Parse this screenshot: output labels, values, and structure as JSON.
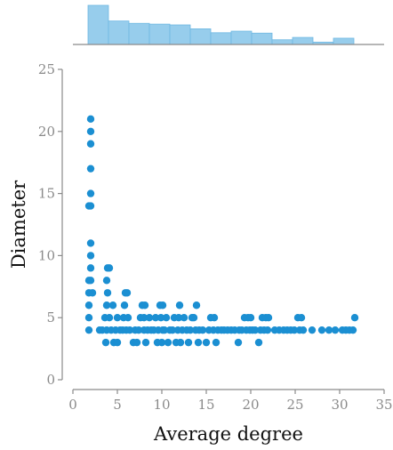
{
  "chart_data": {
    "type": "scatter",
    "title": "",
    "xlabel": "Average degree",
    "ylabel": "Diameter",
    "xlim": [
      0,
      35
    ],
    "ylim": [
      0,
      25
    ],
    "xticks": [
      0,
      5,
      10,
      15,
      20,
      25,
      30,
      35
    ],
    "yticks": [
      0,
      5,
      10,
      15,
      20,
      25
    ],
    "grid": false,
    "legend": "none",
    "colors": {
      "points": "#1b8fd2",
      "hist_fill": "#97cdec",
      "hist_edge": "#6fb8e2"
    },
    "marginal_histogram": {
      "axis": "x",
      "bin_edges": [
        1.7,
        4.0,
        6.3,
        8.6,
        10.9,
        13.2,
        15.5,
        17.8,
        20.1,
        22.4,
        24.7,
        27.0,
        29.3,
        31.6
      ],
      "relative_heights": [
        1.0,
        0.6,
        0.54,
        0.52,
        0.5,
        0.4,
        0.3,
        0.34,
        0.29,
        0.12,
        0.18,
        0.06,
        0.16
      ]
    },
    "points": [
      {
        "x": 1.8,
        "y": 4
      },
      {
        "x": 1.8,
        "y": 5
      },
      {
        "x": 1.8,
        "y": 6
      },
      {
        "x": 1.8,
        "y": 7
      },
      {
        "x": 1.8,
        "y": 8
      },
      {
        "x": 1.8,
        "y": 14
      },
      {
        "x": 2.0,
        "y": 8
      },
      {
        "x": 2.0,
        "y": 9
      },
      {
        "x": 2.0,
        "y": 10
      },
      {
        "x": 2.0,
        "y": 11
      },
      {
        "x": 2.0,
        "y": 14
      },
      {
        "x": 2.0,
        "y": 15
      },
      {
        "x": 2.0,
        "y": 17
      },
      {
        "x": 2.0,
        "y": 19
      },
      {
        "x": 2.0,
        "y": 20
      },
      {
        "x": 2.0,
        "y": 21
      },
      {
        "x": 2.2,
        "y": 7
      },
      {
        "x": 3.0,
        "y": 4
      },
      {
        "x": 3.3,
        "y": 4
      },
      {
        "x": 3.6,
        "y": 5
      },
      {
        "x": 3.7,
        "y": 3
      },
      {
        "x": 3.8,
        "y": 4
      },
      {
        "x": 3.8,
        "y": 6
      },
      {
        "x": 3.8,
        "y": 8
      },
      {
        "x": 3.9,
        "y": 7
      },
      {
        "x": 3.9,
        "y": 9
      },
      {
        "x": 4.1,
        "y": 9
      },
      {
        "x": 4.1,
        "y": 5
      },
      {
        "x": 4.3,
        "y": 4
      },
      {
        "x": 4.5,
        "y": 6
      },
      {
        "x": 4.6,
        "y": 3
      },
      {
        "x": 4.8,
        "y": 4
      },
      {
        "x": 5.0,
        "y": 3
      },
      {
        "x": 5.0,
        "y": 5
      },
      {
        "x": 5.3,
        "y": 4
      },
      {
        "x": 5.6,
        "y": 4
      },
      {
        "x": 5.7,
        "y": 5
      },
      {
        "x": 5.8,
        "y": 6
      },
      {
        "x": 5.9,
        "y": 7
      },
      {
        "x": 6.0,
        "y": 4
      },
      {
        "x": 6.1,
        "y": 7
      },
      {
        "x": 6.2,
        "y": 5
      },
      {
        "x": 6.4,
        "y": 4
      },
      {
        "x": 6.8,
        "y": 3
      },
      {
        "x": 7.0,
        "y": 4
      },
      {
        "x": 7.2,
        "y": 3
      },
      {
        "x": 7.4,
        "y": 4
      },
      {
        "x": 7.6,
        "y": 5
      },
      {
        "x": 7.8,
        "y": 6
      },
      {
        "x": 8.0,
        "y": 4
      },
      {
        "x": 8.0,
        "y": 5
      },
      {
        "x": 8.1,
        "y": 6
      },
      {
        "x": 8.2,
        "y": 3
      },
      {
        "x": 8.4,
        "y": 4
      },
      {
        "x": 8.6,
        "y": 5
      },
      {
        "x": 8.8,
        "y": 4
      },
      {
        "x": 9.1,
        "y": 4
      },
      {
        "x": 9.3,
        "y": 5
      },
      {
        "x": 9.5,
        "y": 3
      },
      {
        "x": 9.6,
        "y": 4
      },
      {
        "x": 9.8,
        "y": 6
      },
      {
        "x": 9.9,
        "y": 5
      },
      {
        "x": 10.0,
        "y": 3
      },
      {
        "x": 10.1,
        "y": 4
      },
      {
        "x": 10.1,
        "y": 6
      },
      {
        "x": 10.3,
        "y": 4
      },
      {
        "x": 10.5,
        "y": 5
      },
      {
        "x": 10.7,
        "y": 3
      },
      {
        "x": 10.9,
        "y": 4
      },
      {
        "x": 11.2,
        "y": 4
      },
      {
        "x": 11.4,
        "y": 5
      },
      {
        "x": 11.6,
        "y": 3
      },
      {
        "x": 11.8,
        "y": 4
      },
      {
        "x": 11.9,
        "y": 5
      },
      {
        "x": 12.0,
        "y": 6
      },
      {
        "x": 12.1,
        "y": 3
      },
      {
        "x": 12.3,
        "y": 4
      },
      {
        "x": 12.5,
        "y": 5
      },
      {
        "x": 12.8,
        "y": 4
      },
      {
        "x": 13.0,
        "y": 3
      },
      {
        "x": 13.2,
        "y": 4
      },
      {
        "x": 13.4,
        "y": 5
      },
      {
        "x": 13.6,
        "y": 5
      },
      {
        "x": 13.8,
        "y": 4
      },
      {
        "x": 13.9,
        "y": 6
      },
      {
        "x": 14.1,
        "y": 3
      },
      {
        "x": 14.2,
        "y": 4
      },
      {
        "x": 14.6,
        "y": 4
      },
      {
        "x": 15.0,
        "y": 3
      },
      {
        "x": 15.3,
        "y": 4
      },
      {
        "x": 15.5,
        "y": 5
      },
      {
        "x": 15.8,
        "y": 4
      },
      {
        "x": 15.9,
        "y": 5
      },
      {
        "x": 16.1,
        "y": 3
      },
      {
        "x": 16.3,
        "y": 4
      },
      {
        "x": 16.7,
        "y": 4
      },
      {
        "x": 17.0,
        "y": 4
      },
      {
        "x": 17.4,
        "y": 4
      },
      {
        "x": 17.8,
        "y": 4
      },
      {
        "x": 18.2,
        "y": 4
      },
      {
        "x": 18.6,
        "y": 3
      },
      {
        "x": 18.7,
        "y": 4
      },
      {
        "x": 19.0,
        "y": 4
      },
      {
        "x": 19.3,
        "y": 5
      },
      {
        "x": 19.5,
        "y": 4
      },
      {
        "x": 19.7,
        "y": 5
      },
      {
        "x": 19.9,
        "y": 4
      },
      {
        "x": 20.0,
        "y": 5
      },
      {
        "x": 20.2,
        "y": 4
      },
      {
        "x": 20.5,
        "y": 4
      },
      {
        "x": 20.9,
        "y": 3
      },
      {
        "x": 21.1,
        "y": 4
      },
      {
        "x": 21.3,
        "y": 5
      },
      {
        "x": 21.5,
        "y": 4
      },
      {
        "x": 21.7,
        "y": 5
      },
      {
        "x": 21.9,
        "y": 4
      },
      {
        "x": 22.0,
        "y": 5
      },
      {
        "x": 22.7,
        "y": 4
      },
      {
        "x": 23.2,
        "y": 4
      },
      {
        "x": 23.7,
        "y": 4
      },
      {
        "x": 24.1,
        "y": 4
      },
      {
        "x": 24.5,
        "y": 4
      },
      {
        "x": 24.9,
        "y": 4
      },
      {
        "x": 25.3,
        "y": 5
      },
      {
        "x": 25.5,
        "y": 4
      },
      {
        "x": 25.7,
        "y": 5
      },
      {
        "x": 25.9,
        "y": 4
      },
      {
        "x": 26.9,
        "y": 4
      },
      {
        "x": 28.0,
        "y": 4
      },
      {
        "x": 28.8,
        "y": 4
      },
      {
        "x": 29.5,
        "y": 4
      },
      {
        "x": 30.3,
        "y": 4
      },
      {
        "x": 30.7,
        "y": 4
      },
      {
        "x": 31.1,
        "y": 4
      },
      {
        "x": 31.5,
        "y": 4
      },
      {
        "x": 31.7,
        "y": 5
      }
    ]
  }
}
